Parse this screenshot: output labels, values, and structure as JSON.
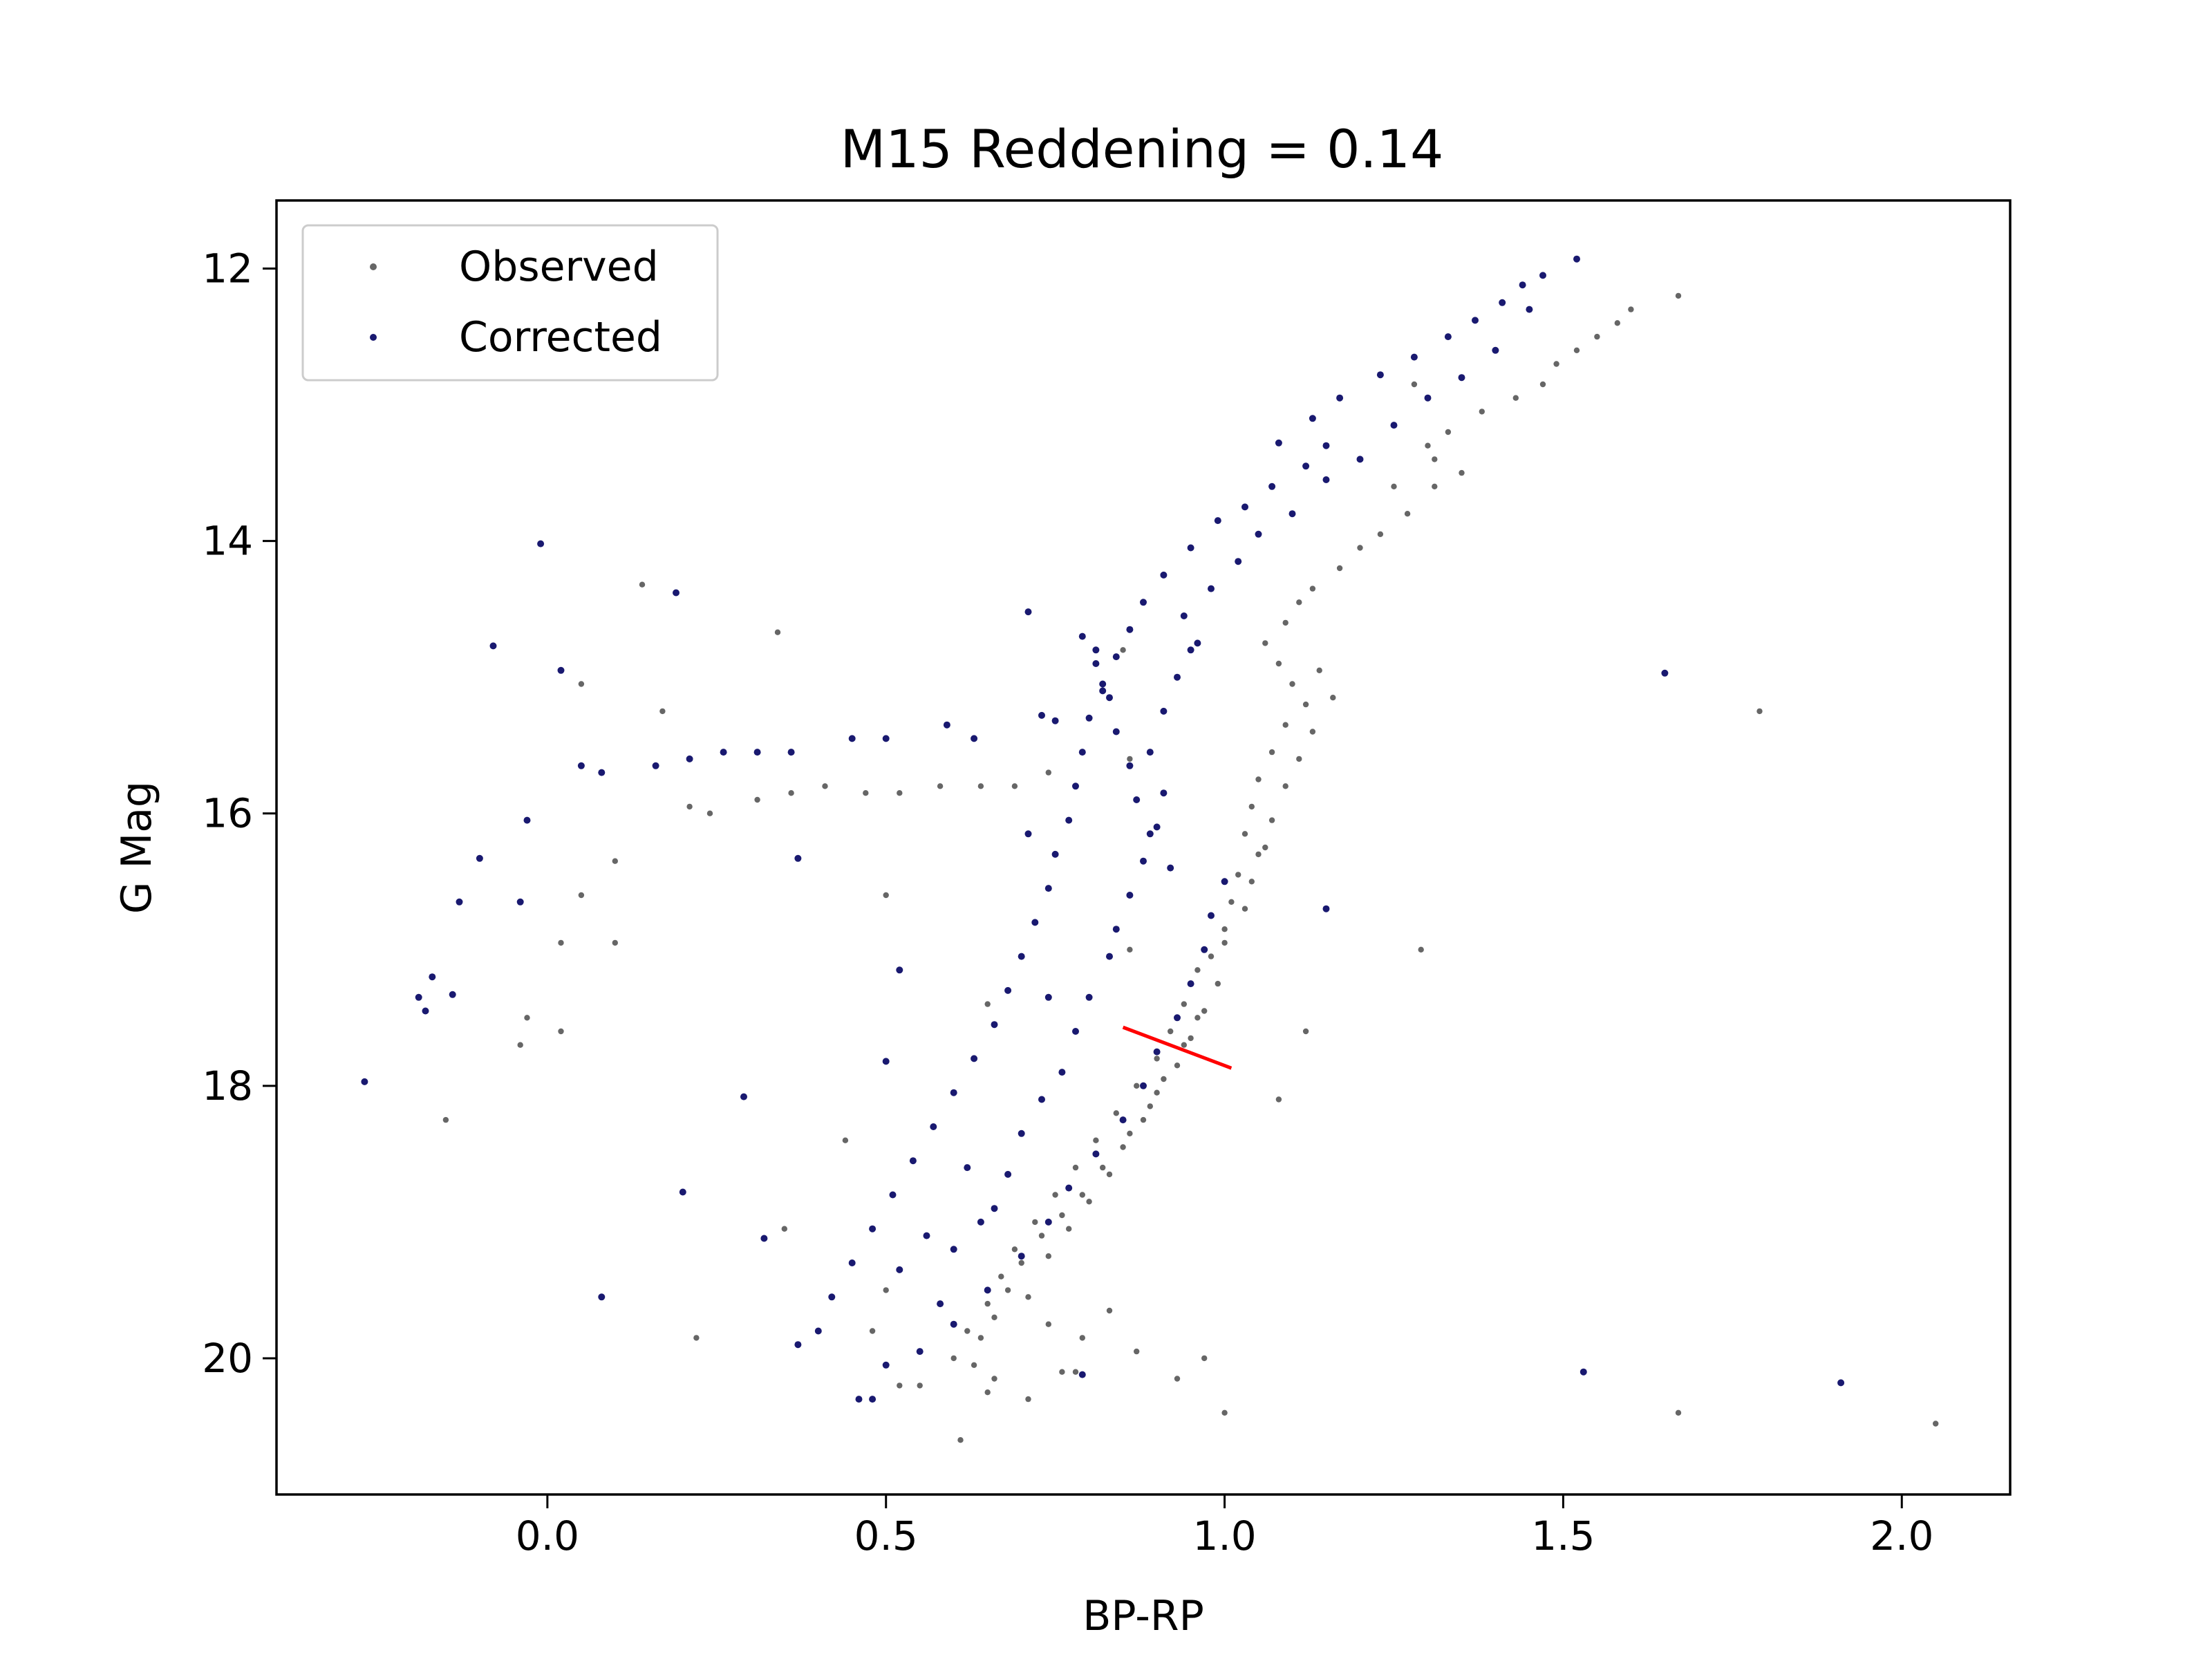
{
  "chart_data": {
    "type": "scatter",
    "title": "M15 Reddening = 0.14",
    "xlabel": "BP-RP",
    "ylabel": "G Mag",
    "xlim": [
      -0.4,
      2.16
    ],
    "ylim": [
      21.0,
      11.5
    ],
    "y_inverted": true,
    "xticks": [
      "0.0",
      "0.5",
      "1.0",
      "1.5",
      "2.0"
    ],
    "yticks": [
      "12",
      "14",
      "16",
      "18",
      "20"
    ],
    "legend": {
      "position": "top-left",
      "entries": [
        "Observed",
        "Corrected"
      ]
    },
    "colors": {
      "observed": "#666666",
      "corrected": "#191970",
      "vector": "#ff0000"
    },
    "reddening_vector": {
      "x": [
        0.85,
        1.01
      ],
      "y": [
        17.57,
        17.87
      ]
    },
    "series": [
      {
        "name": "Observed",
        "color": "#666666",
        "points": [
          [
            1.67,
            12.2
          ],
          [
            1.6,
            12.3
          ],
          [
            1.58,
            12.4
          ],
          [
            1.55,
            12.5
          ],
          [
            1.52,
            12.6
          ],
          [
            1.49,
            12.7
          ],
          [
            1.47,
            12.85
          ],
          [
            1.43,
            12.95
          ],
          [
            1.38,
            13.05
          ],
          [
            1.33,
            13.2
          ],
          [
            1.3,
            13.3
          ],
          [
            1.28,
            12.85
          ],
          [
            1.31,
            13.4
          ],
          [
            1.35,
            13.5
          ],
          [
            1.31,
            13.6
          ],
          [
            1.25,
            13.6
          ],
          [
            1.27,
            13.8
          ],
          [
            1.23,
            13.95
          ],
          [
            1.2,
            14.05
          ],
          [
            1.17,
            14.2
          ],
          [
            1.13,
            14.35
          ],
          [
            1.11,
            14.45
          ],
          [
            1.09,
            14.6
          ],
          [
            1.06,
            14.75
          ],
          [
            1.08,
            14.9
          ],
          [
            1.1,
            15.05
          ],
          [
            1.12,
            15.2
          ],
          [
            1.09,
            15.35
          ],
          [
            1.07,
            15.55
          ],
          [
            1.05,
            15.75
          ],
          [
            1.04,
            15.95
          ],
          [
            1.03,
            16.15
          ],
          [
            1.05,
            16.3
          ],
          [
            1.02,
            16.45
          ],
          [
            1.01,
            16.65
          ],
          [
            1.0,
            16.85
          ],
          [
            0.98,
            17.05
          ],
          [
            0.99,
            17.25
          ],
          [
            0.97,
            17.45
          ],
          [
            0.95,
            17.65
          ],
          [
            0.93,
            17.85
          ],
          [
            0.9,
            18.05
          ],
          [
            0.88,
            18.25
          ],
          [
            0.85,
            18.45
          ],
          [
            0.82,
            18.6
          ],
          [
            0.79,
            18.8
          ],
          [
            0.76,
            18.95
          ],
          [
            0.73,
            19.1
          ],
          [
            0.7,
            19.3
          ],
          [
            0.68,
            19.5
          ],
          [
            0.66,
            19.7
          ],
          [
            0.64,
            19.85
          ],
          [
            0.63,
            20.05
          ],
          [
            0.65,
            20.25
          ],
          [
            0.61,
            20.6
          ],
          [
            0.55,
            20.2
          ],
          [
            0.87,
            19.95
          ],
          [
            0.78,
            20.1
          ],
          [
            0.93,
            20.15
          ],
          [
            0.97,
            20.0
          ],
          [
            1.0,
            20.4
          ],
          [
            1.14,
            14.95
          ],
          [
            1.16,
            15.15
          ],
          [
            1.13,
            15.4
          ],
          [
            1.11,
            15.6
          ],
          [
            1.09,
            15.8
          ],
          [
            1.07,
            16.05
          ],
          [
            1.06,
            16.25
          ],
          [
            1.04,
            16.5
          ],
          [
            1.03,
            16.7
          ],
          [
            1.0,
            16.95
          ],
          [
            0.96,
            17.15
          ],
          [
            0.94,
            17.4
          ],
          [
            0.92,
            17.6
          ],
          [
            0.9,
            17.8
          ],
          [
            0.87,
            18.0
          ],
          [
            0.84,
            18.2
          ],
          [
            0.81,
            18.4
          ],
          [
            0.78,
            18.6
          ],
          [
            0.75,
            18.8
          ],
          [
            0.72,
            19.0
          ],
          [
            0.69,
            19.2
          ],
          [
            0.67,
            19.4
          ],
          [
            0.65,
            19.6
          ],
          [
            0.62,
            19.8
          ],
          [
            0.6,
            20.0
          ],
          [
            0.71,
            19.55
          ],
          [
            0.74,
            19.25
          ],
          [
            0.77,
            19.05
          ],
          [
            0.8,
            18.85
          ],
          [
            0.83,
            18.65
          ],
          [
            0.86,
            18.35
          ],
          [
            0.89,
            18.15
          ],
          [
            0.91,
            17.95
          ],
          [
            0.94,
            17.7
          ],
          [
            0.96,
            17.5
          ],
          [
            0.14,
            14.32
          ],
          [
            0.34,
            14.67
          ],
          [
            0.17,
            15.25
          ],
          [
            0.05,
            15.05
          ],
          [
            0.21,
            15.95
          ],
          [
            0.24,
            16.0
          ],
          [
            0.31,
            15.9
          ],
          [
            0.36,
            15.85
          ],
          [
            0.41,
            15.8
          ],
          [
            0.47,
            15.85
          ],
          [
            0.52,
            15.85
          ],
          [
            0.58,
            15.8
          ],
          [
            0.64,
            15.8
          ],
          [
            0.69,
            15.8
          ],
          [
            0.74,
            15.7
          ],
          [
            0.85,
            14.8
          ],
          [
            0.86,
            15.6
          ],
          [
            0.1,
            16.35
          ],
          [
            0.05,
            16.6
          ],
          [
            0.02,
            16.95
          ],
          [
            0.1,
            16.95
          ],
          [
            -0.03,
            17.5
          ],
          [
            -0.04,
            17.7
          ],
          [
            0.02,
            17.6
          ],
          [
            -0.15,
            18.25
          ],
          [
            0.5,
            16.6
          ],
          [
            0.65,
            17.4
          ],
          [
            0.86,
            17.0
          ],
          [
            1.12,
            17.6
          ],
          [
            1.08,
            18.1
          ],
          [
            1.29,
            17.0
          ],
          [
            1.79,
            15.25
          ],
          [
            1.67,
            20.4
          ],
          [
            2.05,
            20.48
          ],
          [
            0.44,
            18.4
          ],
          [
            0.35,
            19.05
          ],
          [
            0.22,
            19.85
          ],
          [
            0.5,
            19.5
          ],
          [
            0.48,
            19.8
          ],
          [
            0.52,
            20.2
          ],
          [
            0.71,
            20.3
          ],
          [
            0.74,
            19.75
          ],
          [
            0.79,
            19.85
          ],
          [
            0.83,
            19.65
          ],
          [
            0.76,
            20.1
          ],
          [
            0.66,
            20.15
          ]
        ]
      },
      {
        "name": "Corrected",
        "color": "#191970",
        "points": [
          [
            1.52,
            11.93
          ],
          [
            1.47,
            12.05
          ],
          [
            1.44,
            12.12
          ],
          [
            1.41,
            12.25
          ],
          [
            1.37,
            12.38
          ],
          [
            1.33,
            12.5
          ],
          [
            1.28,
            12.65
          ],
          [
            1.23,
            12.78
          ],
          [
            1.17,
            12.95
          ],
          [
            1.13,
            13.1
          ],
          [
            1.08,
            13.28
          ],
          [
            1.15,
            13.3
          ],
          [
            1.12,
            13.45
          ],
          [
            1.07,
            13.6
          ],
          [
            1.03,
            13.75
          ],
          [
            0.99,
            13.85
          ],
          [
            0.95,
            14.05
          ],
          [
            0.91,
            14.25
          ],
          [
            0.88,
            14.45
          ],
          [
            0.86,
            14.65
          ],
          [
            0.84,
            14.85
          ],
          [
            0.82,
            15.05
          ],
          [
            0.8,
            15.3
          ],
          [
            0.79,
            15.55
          ],
          [
            0.78,
            15.8
          ],
          [
            0.77,
            16.05
          ],
          [
            0.75,
            16.3
          ],
          [
            0.74,
            16.55
          ],
          [
            0.72,
            16.8
          ],
          [
            0.7,
            17.05
          ],
          [
            0.68,
            17.3
          ],
          [
            0.66,
            17.55
          ],
          [
            0.63,
            17.8
          ],
          [
            0.6,
            18.05
          ],
          [
            0.57,
            18.3
          ],
          [
            0.54,
            18.55
          ],
          [
            0.51,
            18.8
          ],
          [
            0.48,
            19.05
          ],
          [
            0.45,
            19.3
          ],
          [
            0.42,
            19.55
          ],
          [
            0.4,
            19.8
          ],
          [
            0.5,
            20.05
          ],
          [
            0.46,
            20.3
          ],
          [
            0.55,
            19.95
          ],
          [
            0.6,
            19.75
          ],
          [
            0.65,
            19.5
          ],
          [
            0.7,
            19.25
          ],
          [
            0.74,
            19.0
          ],
          [
            0.77,
            18.75
          ],
          [
            0.81,
            18.5
          ],
          [
            0.85,
            18.25
          ],
          [
            0.88,
            18.0
          ],
          [
            0.9,
            17.75
          ],
          [
            0.93,
            17.5
          ],
          [
            0.95,
            17.25
          ],
          [
            0.97,
            17.0
          ],
          [
            0.98,
            16.75
          ],
          [
            1.0,
            16.5
          ],
          [
            0.92,
            16.4
          ],
          [
            0.89,
            16.15
          ],
          [
            0.87,
            15.9
          ],
          [
            0.86,
            15.65
          ],
          [
            0.84,
            15.4
          ],
          [
            0.83,
            15.15
          ],
          [
            0.81,
            14.9
          ],
          [
            0.79,
            14.7
          ],
          [
            0.96,
            14.75
          ],
          [
            0.94,
            14.55
          ],
          [
            0.98,
            14.35
          ],
          [
            1.02,
            14.15
          ],
          [
            1.05,
            13.95
          ],
          [
            1.1,
            13.8
          ],
          [
            1.15,
            13.55
          ],
          [
            1.2,
            13.4
          ],
          [
            1.25,
            13.15
          ],
          [
            1.3,
            12.95
          ],
          [
            1.35,
            12.8
          ],
          [
            1.4,
            12.6
          ],
          [
            1.45,
            12.3
          ],
          [
            -0.01,
            14.02
          ],
          [
            0.19,
            14.38
          ],
          [
            -0.08,
            14.77
          ],
          [
            0.02,
            14.95
          ],
          [
            0.05,
            15.65
          ],
          [
            0.08,
            15.7
          ],
          [
            0.16,
            15.65
          ],
          [
            0.21,
            15.6
          ],
          [
            0.26,
            15.55
          ],
          [
            0.31,
            15.55
          ],
          [
            0.36,
            15.55
          ],
          [
            0.45,
            15.45
          ],
          [
            0.5,
            15.45
          ],
          [
            0.59,
            15.35
          ],
          [
            0.63,
            15.45
          ],
          [
            0.73,
            15.28
          ],
          [
            0.75,
            15.32
          ],
          [
            0.71,
            14.52
          ],
          [
            0.81,
            14.8
          ],
          [
            0.82,
            15.1
          ],
          [
            0.37,
            16.33
          ],
          [
            0.71,
            16.15
          ],
          [
            -0.03,
            16.05
          ],
          [
            -0.1,
            16.33
          ],
          [
            -0.13,
            16.65
          ],
          [
            -0.04,
            16.65
          ],
          [
            -0.17,
            17.2
          ],
          [
            -0.14,
            17.33
          ],
          [
            -0.19,
            17.35
          ],
          [
            -0.18,
            17.45
          ],
          [
            -0.27,
            17.97
          ],
          [
            0.52,
            17.15
          ],
          [
            0.74,
            17.35
          ],
          [
            0.5,
            17.82
          ],
          [
            0.29,
            18.08
          ],
          [
            0.2,
            18.78
          ],
          [
            0.32,
            19.12
          ],
          [
            0.08,
            19.55
          ],
          [
            0.37,
            19.9
          ],
          [
            0.58,
            19.6
          ],
          [
            0.48,
            20.3
          ],
          [
            0.79,
            20.12
          ],
          [
            1.15,
            16.7
          ],
          [
            1.65,
            14.97
          ],
          [
            1.53,
            20.1
          ],
          [
            1.91,
            20.18
          ],
          [
            0.62,
            18.6
          ],
          [
            0.66,
            18.9
          ],
          [
            0.7,
            18.35
          ],
          [
            0.73,
            18.1
          ],
          [
            0.56,
            19.1
          ],
          [
            0.52,
            19.35
          ],
          [
            0.6,
            19.2
          ],
          [
            0.64,
            19.0
          ],
          [
            0.68,
            18.65
          ],
          [
            0.76,
            17.9
          ],
          [
            0.78,
            17.6
          ],
          [
            0.8,
            17.35
          ],
          [
            0.83,
            17.05
          ],
          [
            0.84,
            16.85
          ],
          [
            0.86,
            16.6
          ],
          [
            0.88,
            16.35
          ],
          [
            0.9,
            16.1
          ],
          [
            0.91,
            15.85
          ],
          [
            0.89,
            15.55
          ],
          [
            0.91,
            15.25
          ],
          [
            0.93,
            15.0
          ],
          [
            0.95,
            14.8
          ]
        ]
      }
    ]
  }
}
